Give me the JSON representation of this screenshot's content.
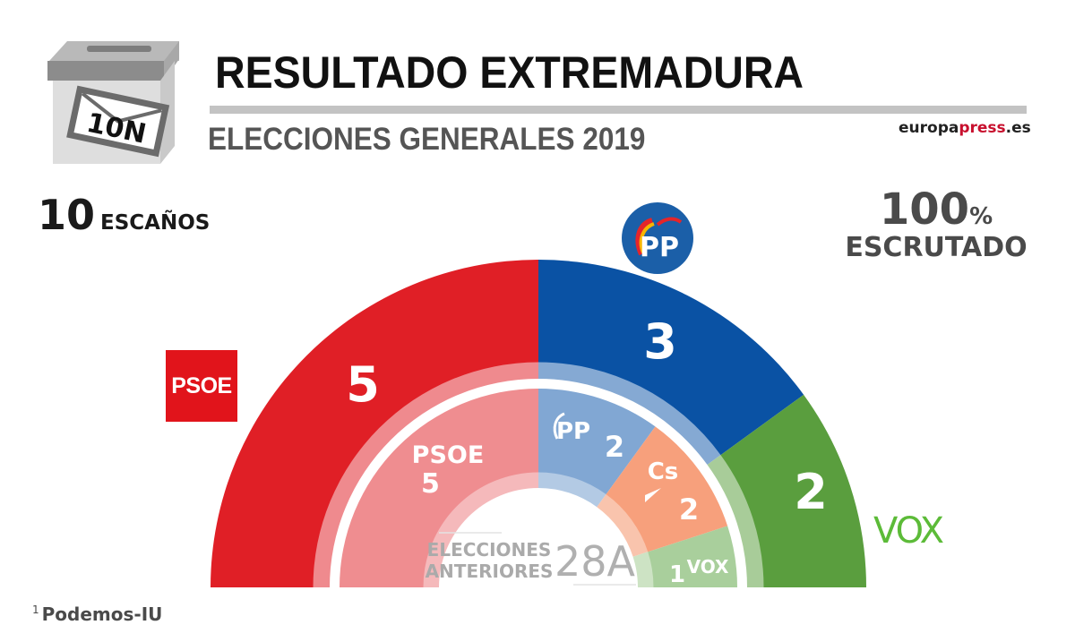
{
  "header": {
    "title": "RESULTADO EXTREMADURA",
    "subtitle": "ELECCIONES GENERALES 2019",
    "brand_main": "europa",
    "brand_accent": "press",
    "brand_tld": ".es",
    "ballot_label": "10N"
  },
  "summary": {
    "seats_number": "10",
    "seats_label": "ESCAÑOS",
    "scrutiny_number": "100",
    "scrutiny_unit": "%",
    "scrutiny_label": "ESCRUTADO"
  },
  "footnote": {
    "marker": "1",
    "text": "Podemos-IU"
  },
  "logos": {
    "psoe": "PSOE",
    "vox": "VOX",
    "pp": "PP"
  },
  "chart_data": {
    "type": "pie",
    "subtype": "semicircle-parliament",
    "title": "RESULTADO EXTREMADURA",
    "total_seats": 10,
    "scrutiny_percent": 100,
    "series": [
      {
        "name": "Elecciones Generales 2019 (10N)",
        "ring": "outer",
        "categories": [
          "PSOE",
          "PP",
          "VOX"
        ],
        "values": [
          5,
          3,
          2
        ],
        "colors": [
          "#e01f26",
          "#0a52a4",
          "#5a9e3e"
        ],
        "ring_light_colors": [
          "#ef8a8e",
          "#85a9d3",
          "#a8cc99"
        ]
      },
      {
        "name": "Elecciones anteriores 28A",
        "ring": "inner",
        "categories": [
          "PSOE",
          "PP",
          "Cs",
          "VOX"
        ],
        "values": [
          5,
          2,
          2,
          1
        ],
        "colors": [
          "#ef8d90",
          "#81a7d3",
          "#f7a07c",
          "#a9cf9c"
        ],
        "ring_light_colors": [
          "#f5b9bb",
          "#b3cae4",
          "#f9c4ad",
          "#cde3c4"
        ]
      }
    ],
    "labels": {
      "outer": [
        "5",
        "3",
        "2"
      ],
      "inner_party": [
        "PSOE",
        "PP",
        "Cs",
        "VOX"
      ],
      "inner_values": [
        "5",
        "2",
        "2",
        "1"
      ],
      "center_line1": "ELECCIONES",
      "center_line2": "ANTERIORES",
      "center_tag": "28A"
    },
    "legend": "logos beside segments"
  }
}
